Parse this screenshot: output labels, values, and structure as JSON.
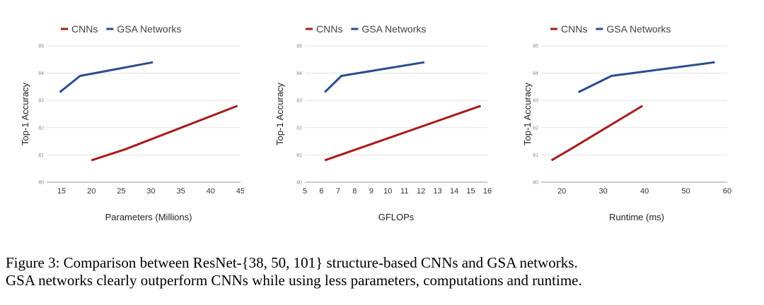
{
  "chart_data": [
    {
      "type": "line",
      "xlabel": "Parameters (Millions)",
      "ylabel": "Top-1 Accuracy",
      "xlim": [
        12.5,
        45
      ],
      "ylim": [
        80,
        85
      ],
      "xticks": [
        15,
        20,
        25,
        30,
        35,
        40,
        45
      ],
      "yticks": [
        80,
        81,
        82,
        83,
        84,
        85
      ],
      "grid": true,
      "legend": "top-left",
      "series": [
        {
          "name": "CNNs",
          "color": "#a51d1d",
          "x": [
            20,
            25.6,
            44.5
          ],
          "y": [
            80.8,
            81.2,
            82.8
          ]
        },
        {
          "name": "GSA Networks",
          "color": "#2b4c8c",
          "x": [
            14.7,
            18.1,
            30.3
          ],
          "y": [
            83.3,
            83.9,
            84.4
          ]
        }
      ]
    },
    {
      "type": "line",
      "xlabel": "GFLOPs",
      "ylabel": "Top-1 Accuracy",
      "xlim": [
        5,
        16
      ],
      "ylim": [
        80,
        85
      ],
      "xticks": [
        5,
        6,
        7,
        8,
        9,
        10,
        11,
        12,
        13,
        14,
        15,
        16
      ],
      "yticks": [
        80,
        81,
        82,
        83,
        84,
        85
      ],
      "grid": true,
      "legend": "top-left",
      "series": [
        {
          "name": "CNNs",
          "color": "#a51d1d",
          "x": [
            6.2,
            15.6
          ],
          "y": [
            80.8,
            82.8
          ]
        },
        {
          "name": "GSA Networks",
          "color": "#2b4c8c",
          "x": [
            6.2,
            7.2,
            12.2
          ],
          "y": [
            83.3,
            83.9,
            84.4
          ]
        }
      ]
    },
    {
      "type": "line",
      "xlabel": "Runtime (ms)",
      "ylabel": "Top-1 Accuracy",
      "xlim": [
        15,
        60
      ],
      "ylim": [
        80,
        85
      ],
      "xticks": [
        20,
        30,
        40,
        50,
        60
      ],
      "yticks": [
        80,
        81,
        82,
        83,
        84,
        85
      ],
      "grid": true,
      "legend": "top-left",
      "series": [
        {
          "name": "CNNs",
          "color": "#a51d1d",
          "x": [
            17.5,
            22,
            39.5
          ],
          "y": [
            80.8,
            81.2,
            82.8
          ]
        },
        {
          "name": "GSA Networks",
          "color": "#2b4c8c",
          "x": [
            24,
            32,
            57
          ],
          "y": [
            83.3,
            83.9,
            84.4
          ]
        }
      ]
    }
  ],
  "caption": {
    "line1": "Figure 3: Comparison between ResNet-{38, 50, 101} structure-based CNNs and GSA networks.",
    "line2": "GSA networks clearly outperform CNNs while using less parameters, computations and runtime."
  }
}
